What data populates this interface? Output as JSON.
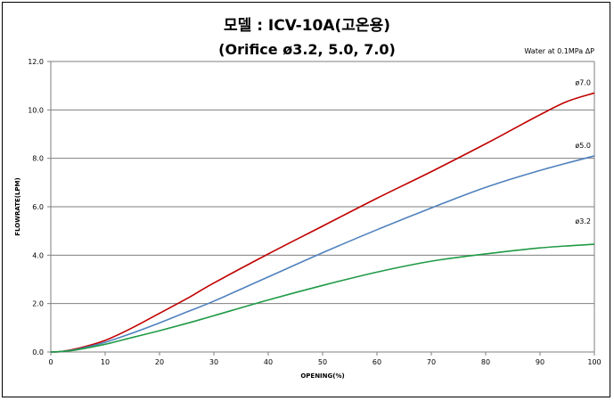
{
  "chart_data": {
    "type": "line",
    "title": "모델 :  ICV-10A(고온용)",
    "subtitle": "(Orifice ø3.2, 5.0, 7.0)",
    "annotation": "Water at 0.1MPa ΔP",
    "xlabel": "OPENING(%)",
    "ylabel": "FLOWRATE(LPM)",
    "xlim": [
      0,
      100
    ],
    "ylim": [
      0,
      12
    ],
    "xticks": [
      "0",
      "10",
      "20",
      "30",
      "40",
      "50",
      "60",
      "70",
      "80",
      "90",
      "100"
    ],
    "yticks": [
      "0.0",
      "2.0",
      "4.0",
      "6.0",
      "8.0",
      "10.0",
      "12.0"
    ],
    "grid": "horizontal",
    "series": [
      {
        "name": "ø7.0",
        "color": "#c00000",
        "x": [
          0,
          2,
          5,
          10,
          15,
          20,
          25,
          30,
          40,
          50,
          60,
          70,
          80,
          85,
          90,
          95,
          100
        ],
        "y": [
          0,
          0.02,
          0.15,
          0.48,
          1.0,
          1.6,
          2.2,
          2.85,
          4.05,
          5.2,
          6.35,
          7.45,
          8.6,
          9.2,
          9.8,
          10.35,
          10.7
        ]
      },
      {
        "name": "ø5.0",
        "color": "#4f81bd",
        "x": [
          0,
          2,
          5,
          10,
          15,
          20,
          25,
          30,
          40,
          50,
          60,
          70,
          80,
          90,
          100
        ],
        "y": [
          0,
          0.02,
          0.12,
          0.4,
          0.78,
          1.2,
          1.65,
          2.1,
          3.1,
          4.1,
          5.05,
          5.95,
          6.8,
          7.5,
          8.1
        ]
      },
      {
        "name": "ø3.2",
        "color": "#1f9a45",
        "x": [
          0,
          2,
          5,
          10,
          15,
          20,
          25,
          30,
          40,
          50,
          60,
          70,
          80,
          90,
          100
        ],
        "y": [
          0,
          0.02,
          0.1,
          0.32,
          0.6,
          0.88,
          1.18,
          1.5,
          2.15,
          2.75,
          3.3,
          3.75,
          4.05,
          4.3,
          4.45
        ]
      }
    ]
  }
}
